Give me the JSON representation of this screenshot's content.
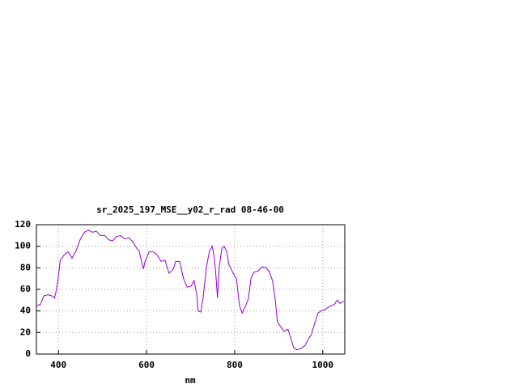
{
  "chart_data": {
    "type": "line",
    "title": "sr_2025_197_MSE__y02_r_rad 08-46-00",
    "x_label": "nm",
    "x": [
      350,
      359,
      367,
      376,
      385,
      391,
      394,
      398,
      404,
      413,
      422,
      431,
      440,
      450,
      459,
      468,
      477,
      486,
      495,
      505,
      514,
      523,
      532,
      541,
      550,
      560,
      569,
      578,
      583,
      589,
      593,
      596,
      606,
      615,
      624,
      633,
      642,
      651,
      661,
      666,
      675,
      684,
      692,
      701,
      708,
      714,
      717,
      723,
      728,
      736,
      743,
      749,
      754,
      758,
      761,
      765,
      771,
      776,
      782,
      787,
      798,
      804,
      811,
      817,
      824,
      831,
      837,
      844,
      853,
      862,
      872,
      879,
      886,
      892,
      897,
      905,
      912,
      921,
      928,
      934,
      941,
      950,
      960,
      967,
      974,
      982,
      989,
      996,
      1004,
      1015,
      1026,
      1033,
      1039,
      1048
    ],
    "series": [
      {
        "color": "#9400d3",
        "values": [
          45,
          46,
          54,
          55,
          54,
          52,
          57,
          66,
          87,
          92,
          95,
          89,
          96,
          107,
          113,
          115,
          113,
          114,
          110,
          110,
          106,
          105,
          109,
          110,
          107,
          108,
          104,
          98,
          96,
          85,
          79,
          85,
          95,
          95,
          92,
          86,
          87,
          75,
          79,
          86,
          86,
          70,
          62,
          63,
          68,
          55,
          40,
          39,
          51,
          81,
          96,
          100,
          89,
          70,
          52,
          81,
          98,
          100,
          95,
          83,
          74,
          70,
          45,
          38,
          44,
          51,
          70,
          76,
          77,
          81,
          80,
          76,
          68,
          51,
          30,
          25,
          21,
          23,
          14,
          6,
          4,
          5,
          8,
          14,
          18,
          29,
          38,
          40,
          41,
          44,
          46,
          50,
          47,
          49
        ]
      }
    ],
    "xlim": [
      350,
      1050
    ],
    "xticks": [
      400,
      600,
      800,
      1000
    ],
    "ylim": [
      0,
      120
    ],
    "yticks": [
      0,
      20,
      40,
      60,
      80,
      100,
      120
    ],
    "grid": true
  }
}
